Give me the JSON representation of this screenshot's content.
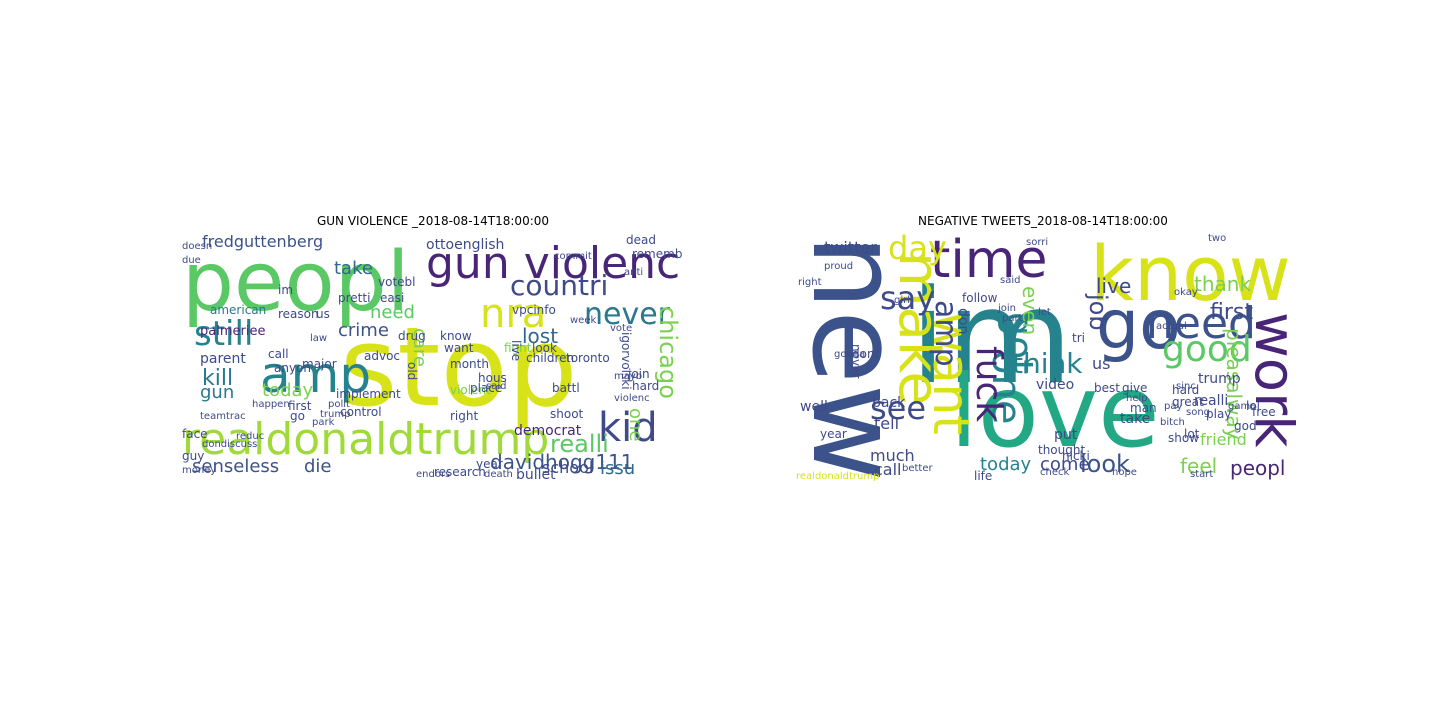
{
  "panels": [
    {
      "title": "GUN VIOLENCE _2018-08-14T18:00:00",
      "words": [
        {
          "text": "peopl",
          "color": "#5ac864"
        },
        {
          "text": "stop",
          "color": "#d8e219"
        },
        {
          "text": "gun violenc",
          "color": "#482576"
        },
        {
          "text": "nra",
          "color": "#d8e219"
        },
        {
          "text": "countri",
          "color": "#3e4a89"
        },
        {
          "text": "amp",
          "color": "#25838e"
        },
        {
          "text": "still",
          "color": "#25838e"
        },
        {
          "text": "realdonaldtrump",
          "color": "#a0da39"
        },
        {
          "text": "kid",
          "color": "#3e4a89"
        },
        {
          "text": "never",
          "color": "#2a788e"
        },
        {
          "text": "realli",
          "color": "#5ac864"
        },
        {
          "text": "chicago",
          "color": "#7ad151"
        },
        {
          "text": "davidhogg111",
          "color": "#3b528b"
        },
        {
          "text": "senseless",
          "color": "#3b528b"
        },
        {
          "text": "die",
          "color": "#3b528b"
        },
        {
          "text": "issu",
          "color": "#31688e"
        },
        {
          "text": "kill",
          "color": "#2a788e"
        },
        {
          "text": "gun",
          "color": "#2a788e"
        },
        {
          "text": "take",
          "color": "#31688e"
        },
        {
          "text": "lost",
          "color": "#31688e"
        },
        {
          "text": "fredguttenberg",
          "color": "#3b528b"
        },
        {
          "text": "crime",
          "color": "#3b528b"
        },
        {
          "text": "need",
          "color": "#5ac864"
        },
        {
          "text": "care",
          "color": "#7ad151"
        },
        {
          "text": "today",
          "color": "#7ad151"
        },
        {
          "text": "one",
          "color": "#7ad151"
        },
        {
          "text": "school",
          "color": "#3e4a89"
        },
        {
          "text": "palmeriee",
          "color": "#482576"
        },
        {
          "text": "ottoenglish",
          "color": "#3e4a89"
        },
        {
          "text": "parent",
          "color": "#3e4a89"
        },
        {
          "text": "american",
          "color": "#2a788e"
        },
        {
          "text": "toronto",
          "color": "#3e4a89"
        },
        {
          "text": "know",
          "color": "#3e4a89"
        },
        {
          "text": "want",
          "color": "#3e4a89"
        },
        {
          "text": "children",
          "color": "#3e4a89"
        },
        {
          "text": "democrat",
          "color": "#482576"
        },
        {
          "text": "control",
          "color": "#3e4a89"
        },
        {
          "text": "bullet",
          "color": "#3e4a89"
        },
        {
          "text": "hous",
          "color": "#3e4a89"
        },
        {
          "text": "battl",
          "color": "#3e4a89"
        },
        {
          "text": "join",
          "color": "#3e4a89"
        },
        {
          "text": "right",
          "color": "#3e4a89"
        },
        {
          "text": "hard",
          "color": "#3e4a89"
        },
        {
          "text": "research",
          "color": "#3e4a89"
        },
        {
          "text": "reason",
          "color": "#3e4a89"
        },
        {
          "text": "month",
          "color": "#3e4a89"
        },
        {
          "text": "dead",
          "color": "#3e4a89"
        },
        {
          "text": "rememb",
          "color": "#3e4a89"
        },
        {
          "text": "vpcinfo",
          "color": "#3e4a89"
        },
        {
          "text": "implement",
          "color": "#3e4a89"
        },
        {
          "text": "fight",
          "color": "#7ad151"
        },
        {
          "text": "law",
          "color": "#3e4a89"
        },
        {
          "text": "first",
          "color": "#3e4a89"
        },
        {
          "text": "guy",
          "color": "#3e4a89"
        },
        {
          "text": "face",
          "color": "#3e4a89"
        },
        {
          "text": "money",
          "color": "#3e4a89"
        },
        {
          "text": "violent",
          "color": "#7ad151"
        },
        {
          "text": "said",
          "color": "#3e4a89"
        },
        {
          "text": "place",
          "color": "#3e4a89"
        },
        {
          "text": "look",
          "color": "#3e4a89"
        },
        {
          "text": "go",
          "color": "#3e4a89"
        },
        {
          "text": "us",
          "color": "#3e4a89"
        },
        {
          "text": "call",
          "color": "#3e4a89"
        },
        {
          "text": "major",
          "color": "#3e4a89"
        },
        {
          "text": "happen",
          "color": "#3e4a89"
        },
        {
          "text": "easi",
          "color": "#3e4a89"
        },
        {
          "text": "pretti",
          "color": "#3e4a89"
        },
        {
          "text": "votebl",
          "color": "#3e4a89"
        },
        {
          "text": "im",
          "color": "#3e4a89"
        },
        {
          "text": "week",
          "color": "#3e4a89"
        },
        {
          "text": "vote",
          "color": "#3e4a89"
        },
        {
          "text": "anyon",
          "color": "#3e4a89"
        },
        {
          "text": "advoc",
          "color": "#3e4a89"
        },
        {
          "text": "year",
          "color": "#3e4a89"
        },
        {
          "text": "death",
          "color": "#3e4a89"
        },
        {
          "text": "doesn",
          "color": "#3e4a89"
        },
        {
          "text": "due",
          "color": "#3e4a89"
        },
        {
          "text": "drug",
          "color": "#3e4a89"
        },
        {
          "text": "old",
          "color": "#3e4a89"
        },
        {
          "text": "mayb",
          "color": "#3e4a89"
        },
        {
          "text": "live",
          "color": "#3e4a89"
        },
        {
          "text": "shoot",
          "color": "#3e4a89"
        },
        {
          "text": "violenc",
          "color": "#3e4a89"
        },
        {
          "text": "park",
          "color": "#3e4a89"
        },
        {
          "text": "polit",
          "color": "#3e4a89"
        },
        {
          "text": "reduc",
          "color": "#3e4a89"
        },
        {
          "text": "trump",
          "color": "#3e4a89"
        },
        {
          "text": "anti",
          "color": "#3e4a89"
        },
        {
          "text": "commit",
          "color": "#3e4a89"
        },
        {
          "text": "endors",
          "color": "#3e4a89"
        },
        {
          "text": "igorvolski",
          "color": "#3e4a89"
        },
        {
          "text": "dondiscuss",
          "color": "#3e4a89"
        },
        {
          "text": "teamtrac",
          "color": "#3e4a89"
        }
      ]
    },
    {
      "title": "NEGATIVE TWEETS_2018-08-14T18:00:00",
      "words": [
        {
          "text": "new",
          "color": "#3b528b"
        },
        {
          "text": "im",
          "color": "#25838e"
        },
        {
          "text": "know",
          "color": "#d8e219"
        },
        {
          "text": "love",
          "color": "#22a884"
        },
        {
          "text": "time",
          "color": "#482576"
        },
        {
          "text": "go",
          "color": "#3b528b"
        },
        {
          "text": "need",
          "color": "#3b528b"
        },
        {
          "text": "work",
          "color": "#482576"
        },
        {
          "text": "make",
          "color": "#d8e219"
        },
        {
          "text": "day",
          "color": "#d8e219"
        },
        {
          "text": "good",
          "color": "#5ac864"
        },
        {
          "text": "want",
          "color": "#d8e219"
        },
        {
          "text": "say",
          "color": "#3e4a89"
        },
        {
          "text": "one",
          "color": "#25838e"
        },
        {
          "text": "got",
          "color": "#25838e"
        },
        {
          "text": "see",
          "color": "#3e4a89"
        },
        {
          "text": "think",
          "color": "#25838e"
        },
        {
          "text": "fuck",
          "color": "#482576"
        },
        {
          "text": "look",
          "color": "#3b528b"
        },
        {
          "text": "amp",
          "color": "#3e4a89"
        },
        {
          "text": "job",
          "color": "#3e4a89"
        },
        {
          "text": "live",
          "color": "#3e4a89"
        },
        {
          "text": "thank",
          "color": "#7ad151"
        },
        {
          "text": "first",
          "color": "#3e4a89"
        },
        {
          "text": "pleasalway",
          "color": "#7ad151"
        },
        {
          "text": "feel",
          "color": "#7ad151"
        },
        {
          "text": "peopl",
          "color": "#482576"
        },
        {
          "text": "today",
          "color": "#25838e"
        },
        {
          "text": "come",
          "color": "#3e4a89"
        },
        {
          "text": "call",
          "color": "#3e4a89"
        },
        {
          "text": "much",
          "color": "#3e4a89"
        },
        {
          "text": "tell",
          "color": "#3e4a89"
        },
        {
          "text": "us",
          "color": "#3e4a89"
        },
        {
          "text": "even",
          "color": "#7ad151"
        },
        {
          "text": "twitter",
          "color": "#3e4a89"
        },
        {
          "text": "don",
          "color": "#3e4a89"
        },
        {
          "text": "back",
          "color": "#3e4a89"
        },
        {
          "text": "never",
          "color": "#3e4a89"
        },
        {
          "text": "well",
          "color": "#3e4a89"
        },
        {
          "text": "year",
          "color": "#3e4a89"
        },
        {
          "text": "friend",
          "color": "#7ad151"
        },
        {
          "text": "trump",
          "color": "#3e4a89"
        },
        {
          "text": "realli",
          "color": "#3e4a89"
        },
        {
          "text": "take",
          "color": "#3e4a89"
        },
        {
          "text": "video",
          "color": "#3e4a89"
        },
        {
          "text": "best",
          "color": "#3e4a89"
        },
        {
          "text": "put",
          "color": "#3e4a89"
        },
        {
          "text": "nicki",
          "color": "#3e4a89"
        },
        {
          "text": "life",
          "color": "#3e4a89"
        },
        {
          "text": "dont",
          "color": "#3e4a89"
        },
        {
          "text": "lol",
          "color": "#3e4a89"
        },
        {
          "text": "free",
          "color": "#3e4a89"
        },
        {
          "text": "god",
          "color": "#3e4a89"
        },
        {
          "text": "show",
          "color": "#3e4a89"
        },
        {
          "text": "man",
          "color": "#3e4a89"
        },
        {
          "text": "thought",
          "color": "#3e4a89"
        },
        {
          "text": "tri",
          "color": "#3e4a89"
        },
        {
          "text": "check",
          "color": "#3e4a89"
        },
        {
          "text": "hope",
          "color": "#3e4a89"
        },
        {
          "text": "start",
          "color": "#3e4a89"
        },
        {
          "text": "sinc",
          "color": "#3e4a89"
        },
        {
          "text": "join",
          "color": "#3e4a89"
        },
        {
          "text": "let",
          "color": "#3e4a89"
        },
        {
          "text": "part",
          "color": "#3e4a89"
        },
        {
          "text": "okay",
          "color": "#3e4a89"
        },
        {
          "text": "two",
          "color": "#3e4a89"
        },
        {
          "text": "hard",
          "color": "#3e4a89"
        },
        {
          "text": "game",
          "color": "#3e4a89"
        },
        {
          "text": "song",
          "color": "#3e4a89"
        },
        {
          "text": "play",
          "color": "#3e4a89"
        },
        {
          "text": "lot",
          "color": "#3e4a89"
        },
        {
          "text": "gonna",
          "color": "#3e4a89"
        },
        {
          "text": "right",
          "color": "#3e4a89"
        },
        {
          "text": "girl",
          "color": "#3e4a89"
        },
        {
          "text": "sorri",
          "color": "#3e4a89"
        },
        {
          "text": "follow",
          "color": "#3e4a89"
        },
        {
          "text": "better",
          "color": "#3e4a89"
        },
        {
          "text": "help",
          "color": "#3e4a89"
        },
        {
          "text": "pay",
          "color": "#3e4a89"
        },
        {
          "text": "give",
          "color": "#3e4a89"
        },
        {
          "text": "great",
          "color": "#3e4a89"
        },
        {
          "text": "realdonaldtrump",
          "color": "#d8e219"
        },
        {
          "text": "bitch",
          "color": "#3e4a89"
        },
        {
          "text": "said",
          "color": "#3e4a89"
        },
        {
          "text": "proud",
          "color": "#3e4a89"
        },
        {
          "text": "actual",
          "color": "#3e4a89"
        }
      ]
    }
  ]
}
